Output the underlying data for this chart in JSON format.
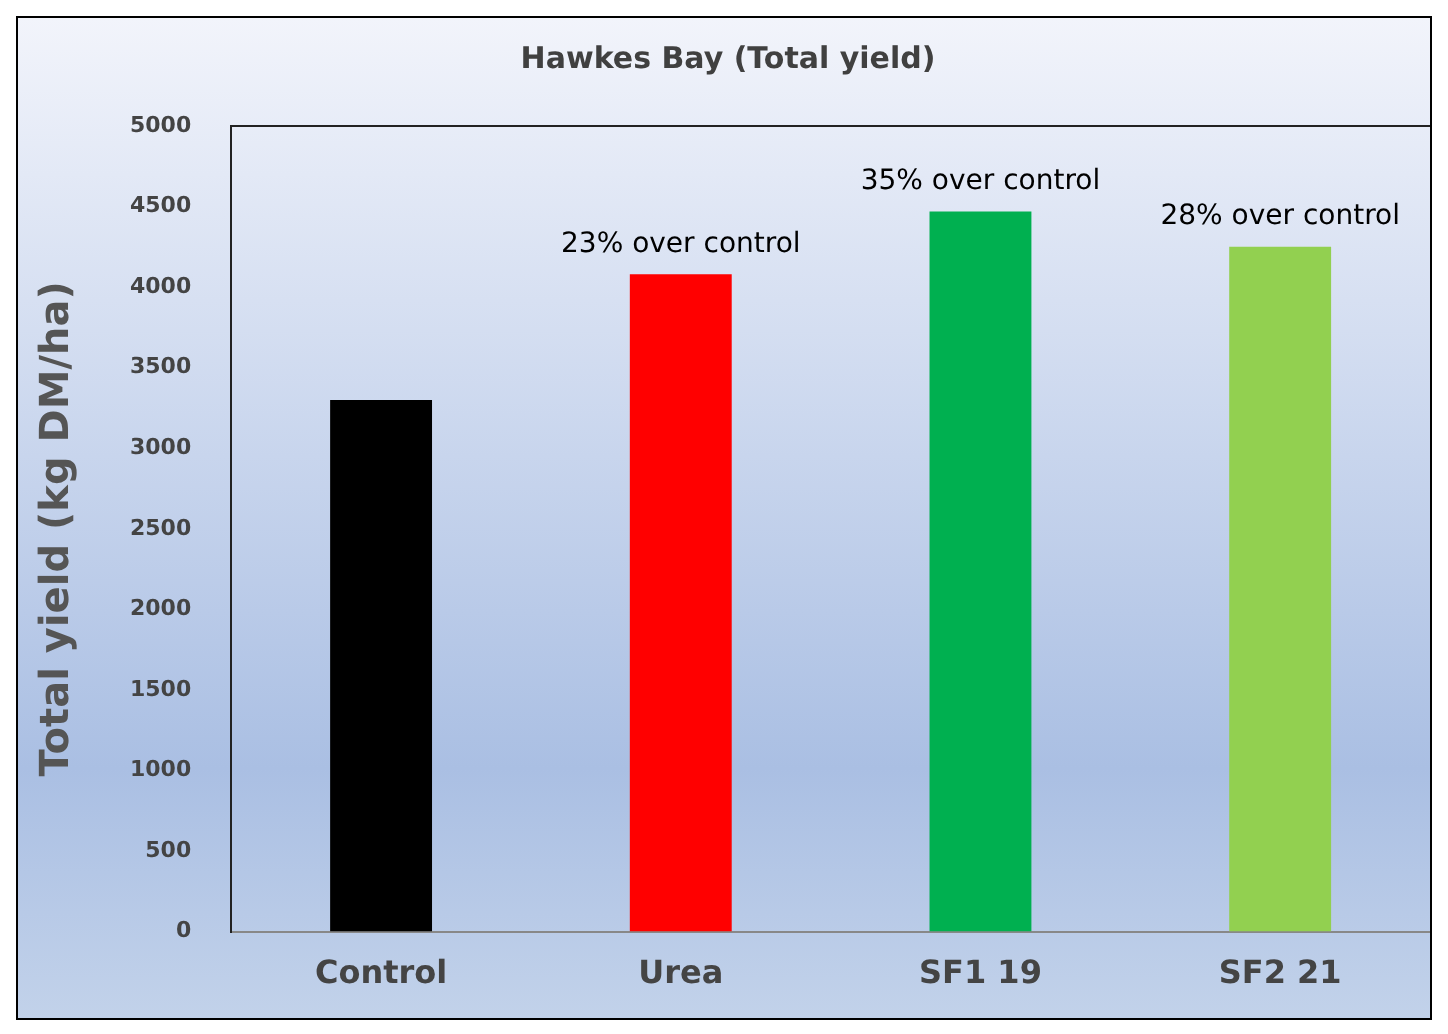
{
  "chart_data": {
    "type": "bar",
    "title": "Hawkes Bay (Total yield)",
    "ylabel": "Total yield (kg DM/ha)",
    "categories": [
      "Control",
      "Urea",
      "SF1 19",
      "SF2 21"
    ],
    "values": [
      3300,
      4080,
      4470,
      4250
    ],
    "colors": [
      "#000000",
      "#ff0000",
      "#00b050",
      "#92d050"
    ],
    "ylim": [
      0,
      5000
    ],
    "yticks": [
      0,
      500,
      1000,
      1500,
      2000,
      2500,
      3000,
      3500,
      4000,
      4500,
      5000
    ],
    "grid": false,
    "legend": false,
    "annotations": [
      {
        "text": "23% over control",
        "x": "Urea",
        "y": 4080
      },
      {
        "text": "35% over control",
        "x": "SF1 19",
        "y": 4470
      },
      {
        "text": "28% over control",
        "x": "SF2 21",
        "y": 4250
      }
    ]
  }
}
